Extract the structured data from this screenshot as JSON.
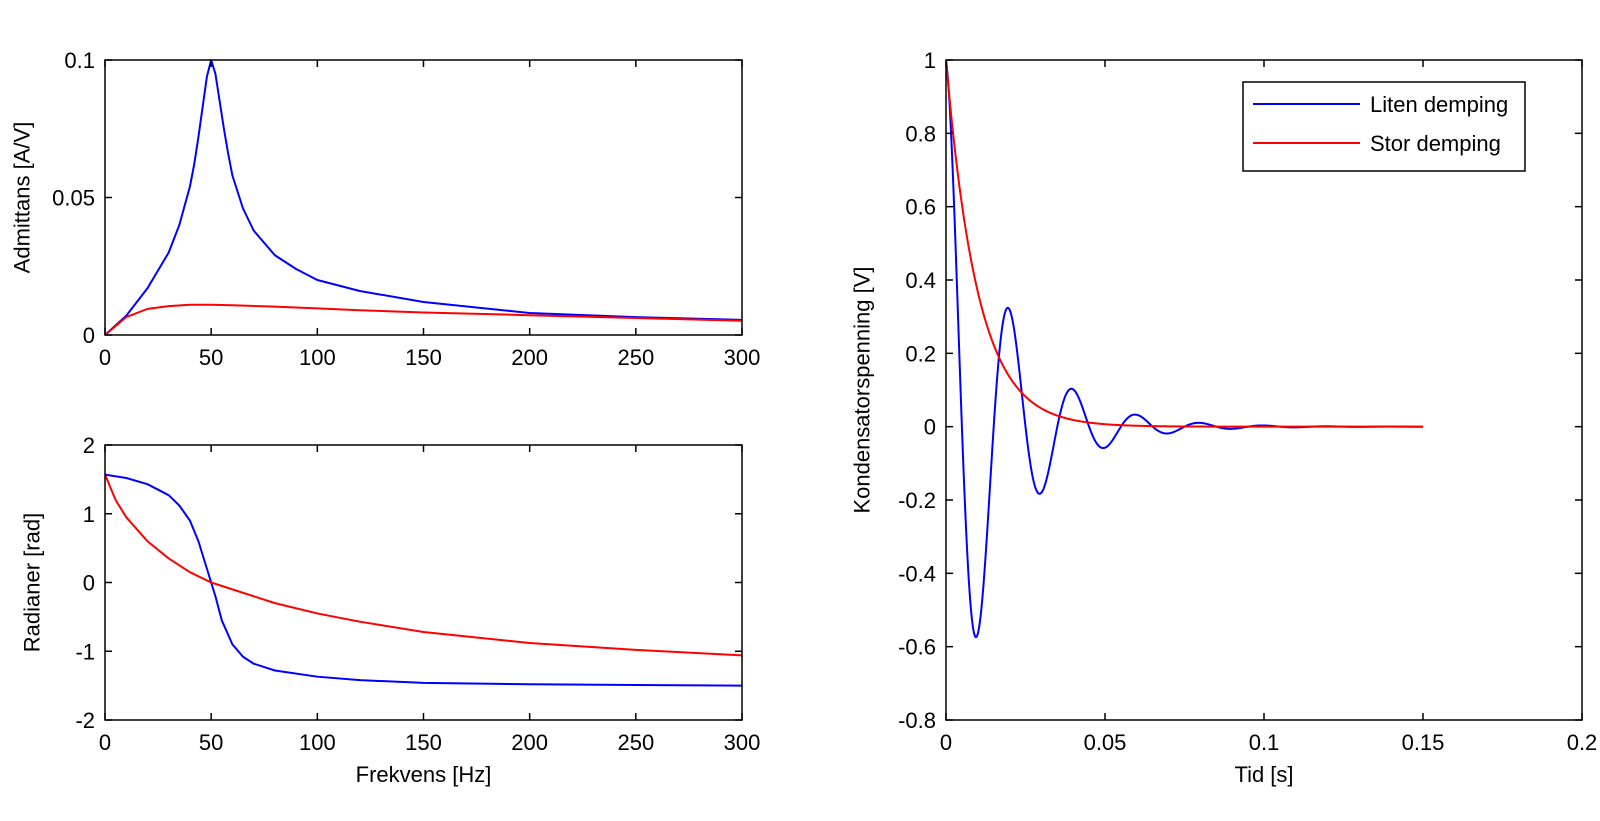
{
  "colors": {
    "blue": "#0000ff",
    "red": "#ff0000",
    "axis": "#000000",
    "background": "#ffffff"
  },
  "chart_data": [
    {
      "type": "line",
      "title": "",
      "xlabel": "",
      "ylabel": "Admittans [A/V]",
      "xlim": [
        0,
        300
      ],
      "ylim": [
        0,
        0.1
      ],
      "xticks": [
        0,
        50,
        100,
        150,
        200,
        250,
        300
      ],
      "yticks": [
        0,
        0.05,
        0.1
      ],
      "xtick_labels": [
        "0",
        "50",
        "100",
        "150",
        "200",
        "250",
        "300"
      ],
      "ytick_labels": [
        "0",
        "0.05",
        "0.1"
      ],
      "grid": false,
      "series": [
        {
          "color": "blue",
          "x": [
            0,
            10,
            20,
            30,
            35,
            40,
            42,
            44,
            46,
            48,
            50,
            52,
            54,
            56,
            58,
            60,
            65,
            70,
            80,
            90,
            100,
            120,
            150,
            200,
            250,
            300
          ],
          "y": [
            0,
            0.007,
            0.017,
            0.03,
            0.04,
            0.054,
            0.062,
            0.072,
            0.083,
            0.094,
            0.1,
            0.095,
            0.085,
            0.075,
            0.066,
            0.058,
            0.046,
            0.038,
            0.029,
            0.024,
            0.02,
            0.016,
            0.012,
            0.008,
            0.0065,
            0.0055
          ]
        },
        {
          "color": "red",
          "x": [
            0,
            10,
            20,
            30,
            40,
            50,
            60,
            80,
            100,
            120,
            150,
            200,
            250,
            300
          ],
          "y": [
            0,
            0.0065,
            0.0095,
            0.0105,
            0.011,
            0.011,
            0.0108,
            0.0103,
            0.0097,
            0.009,
            0.0082,
            0.0072,
            0.0062,
            0.0052
          ]
        }
      ]
    },
    {
      "type": "line",
      "title": "",
      "xlabel": "Frekvens [Hz]",
      "ylabel": "Radianer [rad]",
      "xlim": [
        0,
        300
      ],
      "ylim": [
        -2,
        2
      ],
      "xticks": [
        0,
        50,
        100,
        150,
        200,
        250,
        300
      ],
      "yticks": [
        -2,
        -1,
        0,
        1,
        2
      ],
      "xtick_labels": [
        "0",
        "50",
        "100",
        "150",
        "200",
        "250",
        "300"
      ],
      "ytick_labels": [
        "-2",
        "-1",
        "0",
        "1",
        "2"
      ],
      "grid": false,
      "series": [
        {
          "color": "blue",
          "x": [
            0,
            10,
            20,
            30,
            35,
            40,
            44,
            48,
            50,
            52,
            55,
            60,
            65,
            70,
            80,
            100,
            120,
            150,
            200,
            250,
            300
          ],
          "y": [
            1.57,
            1.52,
            1.43,
            1.27,
            1.12,
            0.9,
            0.6,
            0.2,
            0.0,
            -0.2,
            -0.55,
            -0.9,
            -1.08,
            -1.18,
            -1.28,
            -1.37,
            -1.42,
            -1.46,
            -1.48,
            -1.49,
            -1.5
          ]
        },
        {
          "color": "red",
          "x": [
            0,
            5,
            10,
            20,
            30,
            40,
            50,
            60,
            80,
            100,
            120,
            150,
            200,
            250,
            300
          ],
          "y": [
            1.57,
            1.2,
            0.95,
            0.6,
            0.35,
            0.15,
            0.0,
            -0.1,
            -0.3,
            -0.45,
            -0.57,
            -0.72,
            -0.88,
            -0.98,
            -1.06
          ]
        }
      ]
    },
    {
      "type": "line",
      "title": "",
      "xlabel": "Tid [s]",
      "ylabel": "Kondensatorspenning [V]",
      "xlim": [
        0,
        0.2
      ],
      "ylim": [
        -0.8,
        1
      ],
      "xticks": [
        0,
        0.05,
        0.1,
        0.15,
        0.2
      ],
      "yticks": [
        -0.8,
        -0.6,
        -0.4,
        -0.2,
        0,
        0.2,
        0.4,
        0.6,
        0.8,
        1
      ],
      "xtick_labels": [
        "0",
        "0.05",
        "0.1",
        "0.15",
        "0.2"
      ],
      "ytick_labels": [
        "-0.8",
        "-0.6",
        "-0.4",
        "-0.2",
        "0",
        "0.2",
        "0.4",
        "0.6",
        "0.8",
        "1"
      ],
      "grid": false,
      "legend": {
        "position": "top-right",
        "entries": [
          "Liten demping",
          "Stor demping"
        ]
      },
      "series": [
        {
          "name": "Liten demping",
          "color": "blue",
          "model": {
            "kind": "damped-cosine",
            "amplitude": 1,
            "tau": 0.0175,
            "period": 0.02,
            "t_end": 0.15
          }
        },
        {
          "name": "Stor demping",
          "color": "red",
          "model": {
            "kind": "exponential",
            "amplitude": 1,
            "tau": 0.01,
            "t_end": 0.15
          }
        }
      ]
    }
  ]
}
